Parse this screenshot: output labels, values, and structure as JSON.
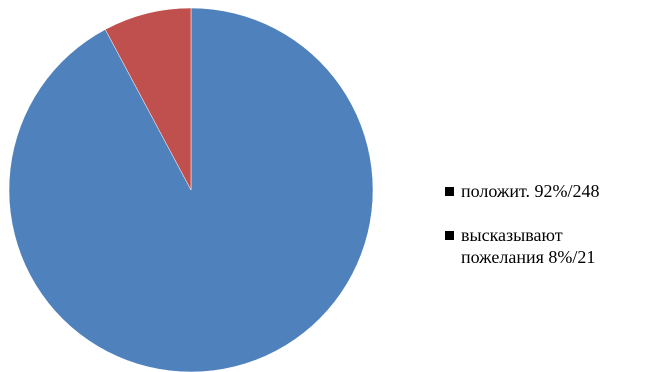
{
  "chart_data": {
    "type": "pie",
    "slices": [
      {
        "label": "положит. 92%/248",
        "value": 248,
        "percent": 92,
        "color": "#4F81BD"
      },
      {
        "label": "высказывают\nпожелания 8%/21",
        "value": 21,
        "percent": 8,
        "color": "#C0504D"
      }
    ],
    "legend_position": "right",
    "start_angle": "12 o'clock",
    "direction": "clockwise"
  }
}
